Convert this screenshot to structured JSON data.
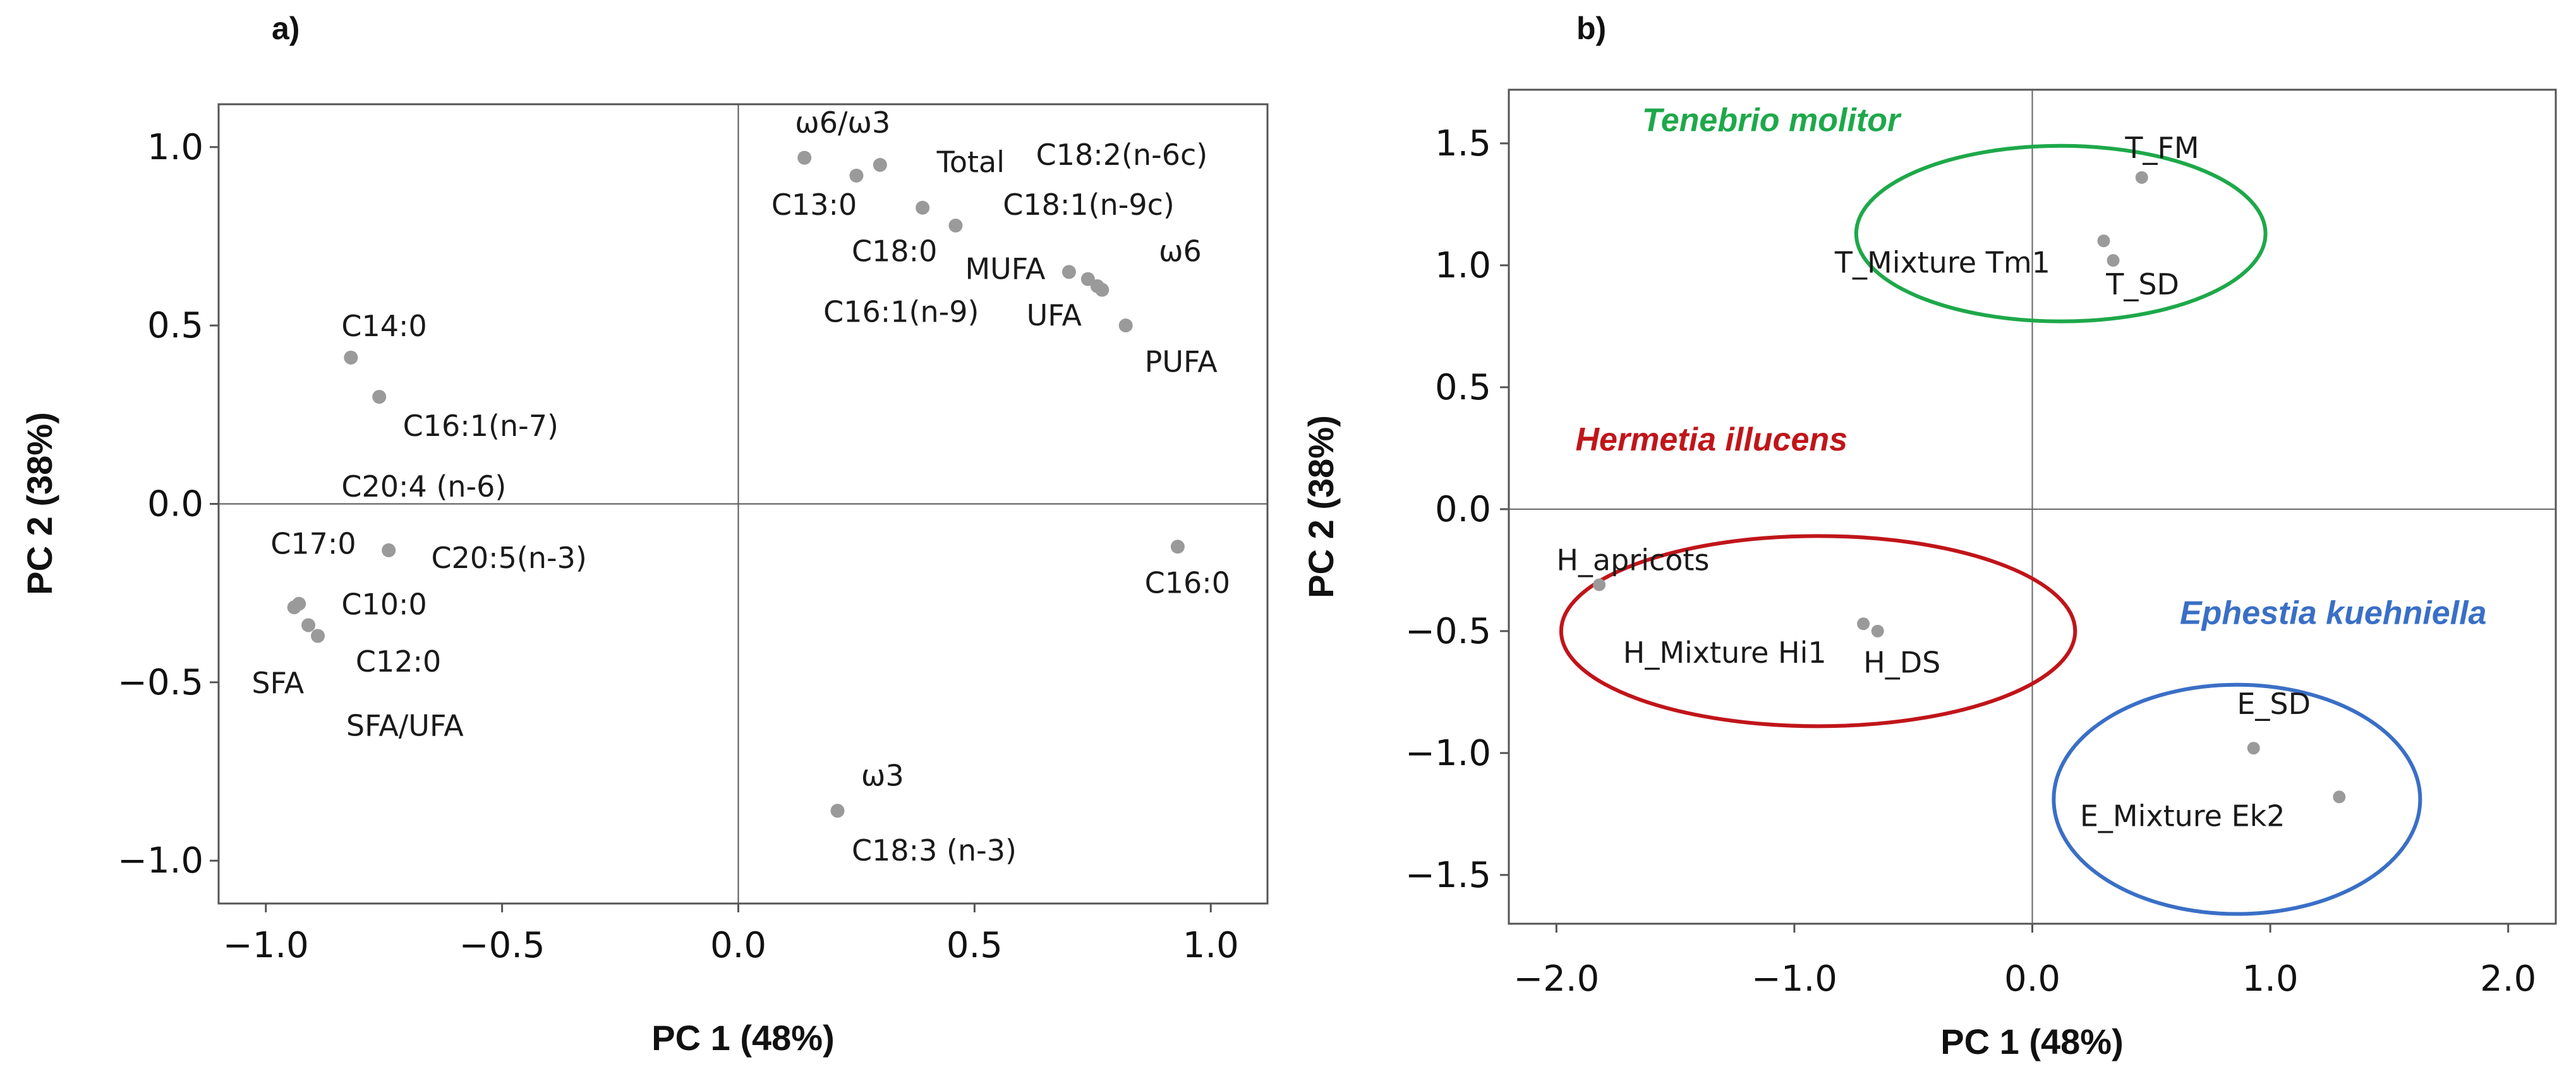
{
  "chart_data": [
    {
      "type": "scatter",
      "panel_label": "a)",
      "title": "",
      "xlabel": "PC 1 (48%)",
      "ylabel": "PC 2 (38%)",
      "xlim": [
        -1.1,
        1.12
      ],
      "ylim": [
        -1.12,
        1.12
      ],
      "xticks": [
        -1.0,
        -0.5,
        0.0,
        0.5,
        1.0
      ],
      "yticks": [
        -1.0,
        -0.5,
        0.0,
        0.5,
        1.0
      ],
      "xtick_labels": [
        "−1.0",
        "−0.5",
        "0.0",
        "0.5",
        "1.0"
      ],
      "ytick_labels": [
        "−1.0",
        "−0.5",
        "0.0",
        "0.5",
        "1.0"
      ],
      "point_color": "#9a9a9a",
      "points": [
        {
          "x": 0.14,
          "y": 0.97
        },
        {
          "x": 0.25,
          "y": 0.92
        },
        {
          "x": 0.3,
          "y": 0.95
        },
        {
          "x": 0.39,
          "y": 0.83
        },
        {
          "x": 0.46,
          "y": 0.78
        },
        {
          "x": 0.7,
          "y": 0.65
        },
        {
          "x": 0.74,
          "y": 0.63
        },
        {
          "x": 0.76,
          "y": 0.61
        },
        {
          "x": 0.77,
          "y": 0.6
        },
        {
          "x": 0.82,
          "y": 0.5
        },
        {
          "x": -0.82,
          "y": 0.41
        },
        {
          "x": -0.76,
          "y": 0.3
        },
        {
          "x": -0.74,
          "y": -0.13
        },
        {
          "x": -0.93,
          "y": -0.28
        },
        {
          "x": -0.94,
          "y": -0.29
        },
        {
          "x": -0.91,
          "y": -0.34
        },
        {
          "x": -0.89,
          "y": -0.37
        },
        {
          "x": 0.93,
          "y": -0.12
        },
        {
          "x": 0.21,
          "y": -0.86
        }
      ],
      "labels": [
        {
          "text": "ω6/ω3",
          "x": 0.12,
          "y": 1.04
        },
        {
          "text": "Total",
          "x": 0.42,
          "y": 0.93
        },
        {
          "text": "C18:2(n-6c)",
          "x": 0.63,
          "y": 0.95
        },
        {
          "text": "C13:0",
          "x": 0.07,
          "y": 0.81
        },
        {
          "text": "C18:1(n-9c)",
          "x": 0.56,
          "y": 0.81
        },
        {
          "text": "C18:0",
          "x": 0.24,
          "y": 0.68
        },
        {
          "text": "ω6",
          "x": 0.89,
          "y": 0.68
        },
        {
          "text": "MUFA",
          "x": 0.48,
          "y": 0.63
        },
        {
          "text": "C16:1(n-9)",
          "x": 0.18,
          "y": 0.51
        },
        {
          "text": "UFA",
          "x": 0.61,
          "y": 0.5
        },
        {
          "text": "PUFA",
          "x": 0.86,
          "y": 0.37
        },
        {
          "text": "C14:0",
          "x": -0.84,
          "y": 0.47
        },
        {
          "text": "C16:1(n-7)",
          "x": -0.71,
          "y": 0.19
        },
        {
          "text": "C20:4 (n-6)",
          "x": -0.84,
          "y": 0.02
        },
        {
          "text": "C17:0",
          "x": -0.99,
          "y": -0.14
        },
        {
          "text": "C20:5(n-3)",
          "x": -0.65,
          "y": -0.18
        },
        {
          "text": "C10:0",
          "x": -0.84,
          "y": -0.31
        },
        {
          "text": "C16:0",
          "x": 0.86,
          "y": -0.25
        },
        {
          "text": "C12:0",
          "x": -0.81,
          "y": -0.47
        },
        {
          "text": "SFA",
          "x": -1.03,
          "y": -0.53
        },
        {
          "text": "SFA/UFA",
          "x": -0.83,
          "y": -0.65
        },
        {
          "text": "ω3",
          "x": 0.26,
          "y": -0.79
        },
        {
          "text": "C18:3 (n-3)",
          "x": 0.24,
          "y": -1.0
        }
      ]
    },
    {
      "type": "scatter",
      "panel_label": "b)",
      "title": "",
      "xlabel": "PC 1 (48%)",
      "ylabel": "PC 2 (38%)",
      "xlim": [
        -2.2,
        2.2
      ],
      "ylim": [
        -1.7,
        1.72
      ],
      "xticks": [
        -2.0,
        -1.0,
        0.0,
        1.0,
        2.0
      ],
      "yticks": [
        1.5,
        1.0,
        0.5,
        0.0,
        -0.5,
        -1.0,
        -1.5
      ],
      "xtick_labels": [
        "−2.0",
        "−1.0",
        "0.0",
        "1.0",
        "2.0"
      ],
      "ytick_labels": [
        "1.5",
        "1.0",
        "0.5",
        "0.0",
        "−0.5",
        "−1.0",
        "−1.5"
      ],
      "point_color": "#9a9a9a",
      "points": [
        {
          "x": 0.46,
          "y": 1.36
        },
        {
          "x": 0.3,
          "y": 1.1
        },
        {
          "x": 0.34,
          "y": 1.02
        },
        {
          "x": -1.82,
          "y": -0.31
        },
        {
          "x": -0.71,
          "y": -0.47
        },
        {
          "x": -0.65,
          "y": -0.5
        },
        {
          "x": 0.93,
          "y": -0.98
        },
        {
          "x": 1.29,
          "y": -1.18
        }
      ],
      "labels": [
        {
          "text": "T_FM",
          "x": 0.39,
          "y": 1.44
        },
        {
          "text": "T_Mixture Tm1",
          "x": -0.83,
          "y": 0.97
        },
        {
          "text": "T_SD",
          "x": 0.31,
          "y": 0.88
        },
        {
          "text": "H_apricots",
          "x": -2.0,
          "y": -0.25
        },
        {
          "text": "H_Mixture Hi1",
          "x": -1.72,
          "y": -0.63
        },
        {
          "text": "H_DS",
          "x": -0.71,
          "y": -0.67
        },
        {
          "text": "E_SD",
          "x": 0.86,
          "y": -0.84
        },
        {
          "text": "E_Mixture Ek2",
          "x": 0.2,
          "y": -1.3
        }
      ],
      "groups": [
        {
          "name": "Tenebrio molitor",
          "color": "#1ea84a",
          "label_x": -1.64,
          "label_y": 1.55,
          "cx": 0.12,
          "cy": 1.13,
          "rx": 0.86,
          "ry": 0.36
        },
        {
          "name": "Hermetia illucens",
          "color": "#c0151a",
          "label_x": -1.92,
          "label_y": 0.24,
          "cx": -0.9,
          "cy": -0.5,
          "rx": 1.08,
          "ry": 0.39
        },
        {
          "name": "Ephestia kuehniella",
          "color": "#3a6fc6",
          "label_x": 0.62,
          "label_y": -0.47,
          "cx": 0.86,
          "cy": -1.19,
          "rx": 0.77,
          "ry": 0.47
        }
      ]
    }
  ]
}
